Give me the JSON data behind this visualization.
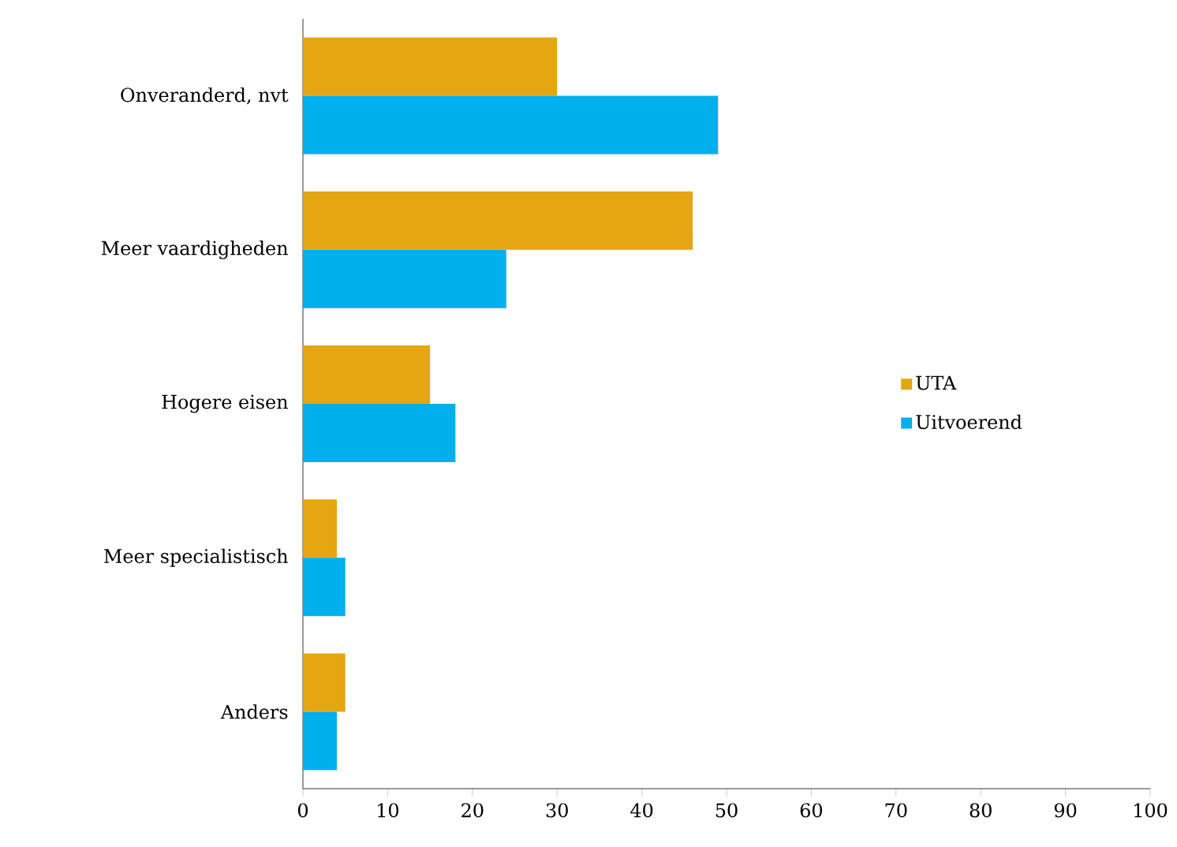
{
  "chart_data": {
    "type": "bar",
    "orientation": "horizontal",
    "categories": [
      "Onveranderd, nvt",
      "Meer vaardigheden",
      "Hogere eisen",
      "Meer specialistisch",
      "Anders"
    ],
    "series": [
      {
        "name": "UTA",
        "color": "#e6a612",
        "values": [
          30,
          46,
          15,
          4,
          5
        ]
      },
      {
        "name": "Uitvoerend",
        "color": "#00b0ec",
        "values": [
          49,
          24,
          18,
          5,
          4
        ]
      }
    ],
    "xlim": [
      0,
      100
    ],
    "xticks": [
      0,
      10,
      20,
      30,
      40,
      50,
      60,
      70,
      80,
      90,
      100
    ],
    "legend": "right"
  }
}
